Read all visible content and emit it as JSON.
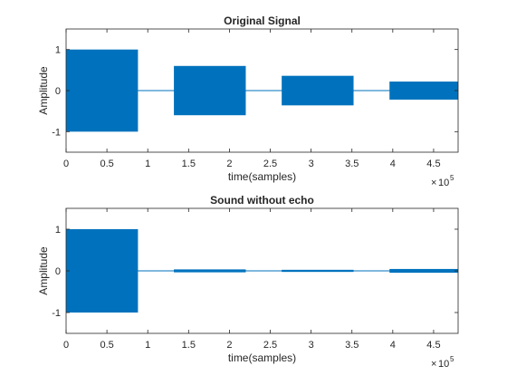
{
  "chart_data": [
    {
      "type": "area",
      "title": "Original Signal",
      "xlabel": "time(samples)",
      "ylabel": "Amplitude",
      "x_exponent_label": "10",
      "x_exponent_power": "5",
      "xlim": [
        0,
        480000
      ],
      "ylim": [
        -1.5,
        1.5
      ],
      "x_ticks": [
        0,
        50000,
        100000,
        150000,
        200000,
        250000,
        300000,
        350000,
        400000,
        450000
      ],
      "x_tick_labels": [
        "0",
        "0.5",
        "1",
        "1.5",
        "2",
        "2.5",
        "3",
        "3.5",
        "4",
        "4.5"
      ],
      "y_ticks": [
        -1,
        0,
        1
      ],
      "y_tick_labels": [
        "-1",
        "0",
        "1"
      ],
      "grid": false,
      "color": "#0072BD",
      "segments": [
        {
          "x_start": 0,
          "x_end": 88000,
          "amplitude": 1.0
        },
        {
          "x_start": 132000,
          "x_end": 220000,
          "amplitude": 0.6
        },
        {
          "x_start": 264000,
          "x_end": 352000,
          "amplitude": 0.36
        },
        {
          "x_start": 396000,
          "x_end": 480000,
          "amplitude": 0.22
        }
      ]
    },
    {
      "type": "area",
      "title": "Sound without echo",
      "xlabel": "time(samples)",
      "ylabel": "Amplitude",
      "x_exponent_label": "10",
      "x_exponent_power": "5",
      "xlim": [
        0,
        480000
      ],
      "ylim": [
        -1.5,
        1.5
      ],
      "x_ticks": [
        0,
        50000,
        100000,
        150000,
        200000,
        250000,
        300000,
        350000,
        400000,
        450000
      ],
      "x_tick_labels": [
        "0",
        "0.5",
        "1",
        "1.5",
        "2",
        "2.5",
        "3",
        "3.5",
        "4",
        "4.5"
      ],
      "y_ticks": [
        -1,
        0,
        1
      ],
      "y_tick_labels": [
        "-1",
        "0",
        "1"
      ],
      "grid": false,
      "color": "#0072BD",
      "segments": [
        {
          "x_start": 0,
          "x_end": 88000,
          "amplitude": 1.0
        },
        {
          "x_start": 132000,
          "x_end": 220000,
          "amplitude": 0.035
        },
        {
          "x_start": 264000,
          "x_end": 352000,
          "amplitude": 0.025
        },
        {
          "x_start": 396000,
          "x_end": 480000,
          "amplitude": 0.045
        }
      ]
    }
  ]
}
